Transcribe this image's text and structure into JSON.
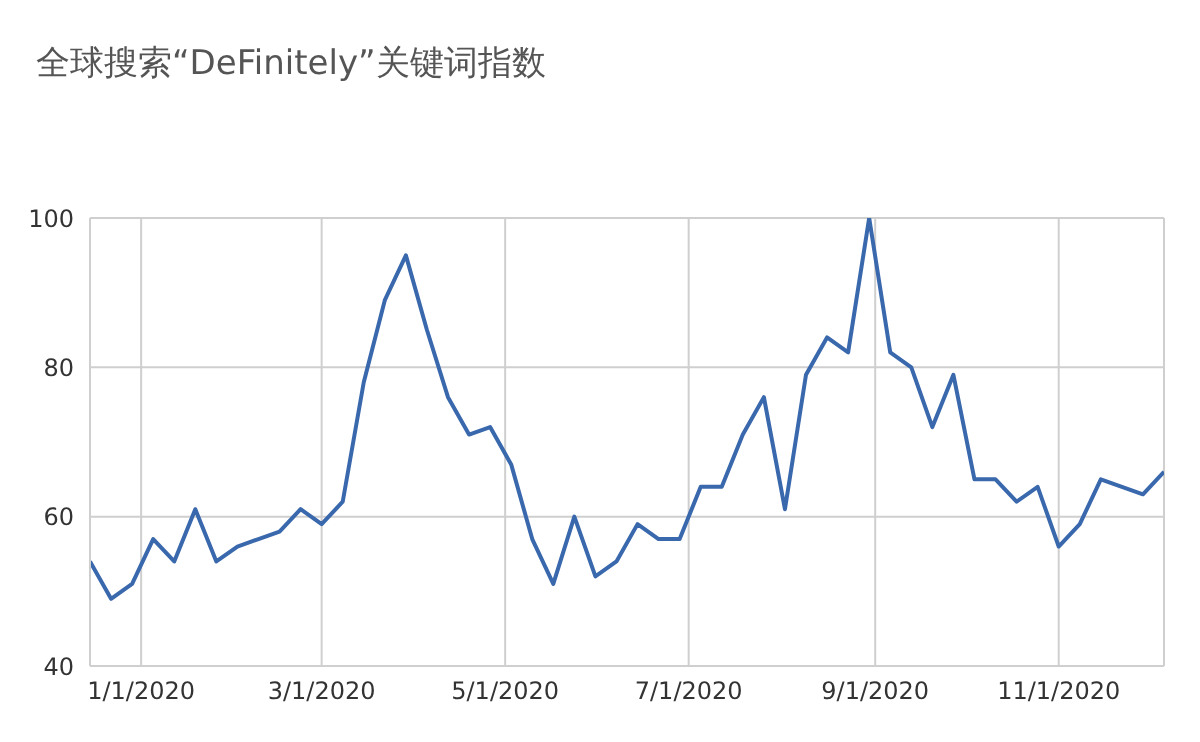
{
  "chart_data": {
    "type": "line",
    "title": "全球搜索“DeFinitely”关键词指数",
    "x": [
      "2019-12-15",
      "2019-12-22",
      "2019-12-29",
      "2020-01-05",
      "2020-01-12",
      "2020-01-19",
      "2020-01-26",
      "2020-02-02",
      "2020-02-09",
      "2020-02-16",
      "2020-02-23",
      "2020-03-01",
      "2020-03-08",
      "2020-03-15",
      "2020-03-22",
      "2020-03-29",
      "2020-04-05",
      "2020-04-12",
      "2020-04-19",
      "2020-04-26",
      "2020-05-03",
      "2020-05-10",
      "2020-05-17",
      "2020-05-24",
      "2020-05-31",
      "2020-06-07",
      "2020-06-14",
      "2020-06-21",
      "2020-06-28",
      "2020-07-05",
      "2020-07-12",
      "2020-07-19",
      "2020-07-26",
      "2020-08-02",
      "2020-08-09",
      "2020-08-16",
      "2020-08-23",
      "2020-08-30",
      "2020-09-06",
      "2020-09-13",
      "2020-09-20",
      "2020-09-27",
      "2020-10-04",
      "2020-10-11",
      "2020-10-18",
      "2020-10-25",
      "2020-11-01",
      "2020-11-08",
      "2020-11-15",
      "2020-11-22",
      "2020-11-29",
      "2020-12-06"
    ],
    "series": [
      {
        "color": "#3a68ad",
        "values": [
          54,
          49,
          51,
          57,
          54,
          61,
          54,
          56,
          57,
          58,
          61,
          59,
          62,
          78,
          89,
          95,
          85,
          76,
          71,
          72,
          67,
          57,
          51,
          60,
          52,
          54,
          59,
          57,
          57,
          64,
          64,
          71,
          76,
          61,
          79,
          84,
          82,
          100,
          82,
          80,
          72,
          79,
          65,
          65,
          62,
          64,
          56,
          59,
          65,
          64,
          63,
          66
        ]
      }
    ],
    "xlim": [
      "2019-12-15",
      "2020-12-06"
    ],
    "xticks": [
      {
        "value": "2020-01-01",
        "label": "1/1/2020"
      },
      {
        "value": "2020-03-01",
        "label": "3/1/2020"
      },
      {
        "value": "2020-05-01",
        "label": "5/1/2020"
      },
      {
        "value": "2020-07-01",
        "label": "7/1/2020"
      },
      {
        "value": "2020-09-01",
        "label": "9/1/2020"
      },
      {
        "value": "2020-11-01",
        "label": "11/1/2020"
      }
    ],
    "ylim": [
      40,
      100
    ],
    "yticks": [
      40,
      60,
      80,
      100
    ],
    "grid": true,
    "legend": false,
    "marker": "none",
    "line_style": "solid"
  }
}
